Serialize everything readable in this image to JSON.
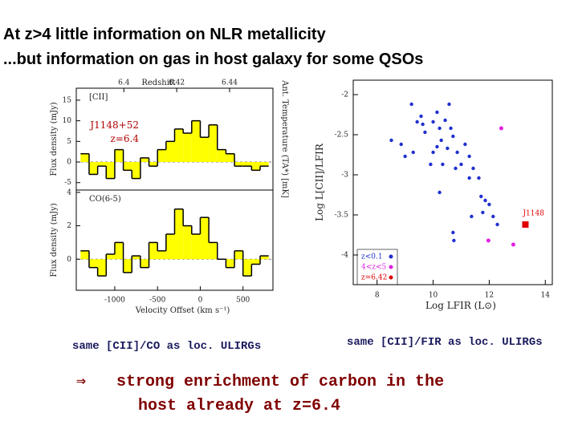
{
  "header": {
    "title": "At z>4 little information on NLR metallicity",
    "subtitle": "...but information on gas in host galaxy for some QSOs"
  },
  "captions": [
    "same [CII]/CO as loc. ULIRGs",
    "same [CII]/FIR as loc. ULIRGs"
  ],
  "conclusion": {
    "arrow": "⇒",
    "lines": [
      "strong enrichment of carbon in the",
      "host already at z=6.4"
    ]
  },
  "chart_data": [
    {
      "type": "step",
      "label": "[CII]",
      "annotations": [
        "J1148+52",
        "z=6.4"
      ],
      "ylabel": "Flux density (mJy)",
      "y2label": "Ant. Temperature (TA*) [mK]",
      "x2label": "Redshift",
      "x": [
        -1350,
        -1250,
        -1150,
        -1050,
        -950,
        -850,
        -750,
        -650,
        -550,
        -450,
        -350,
        -250,
        -150,
        -50,
        50,
        150,
        250,
        350,
        450,
        550,
        650,
        750
      ],
      "values": [
        2,
        -3,
        -1,
        -4,
        3,
        -2,
        -4,
        1,
        -1,
        3,
        5,
        8,
        7,
        10,
        6,
        9,
        3,
        2,
        -1,
        -1,
        -2,
        -1
      ],
      "color": "#ffff00",
      "xlim": [
        -1450,
        850
      ],
      "ylim": [
        -6.8,
        17.9
      ],
      "yticks": [
        15,
        10,
        5,
        0,
        -5
      ],
      "x2lim": [
        6.382,
        6.4564
      ],
      "x2ticks": [
        6.4,
        6.42,
        6.44
      ]
    },
    {
      "type": "step",
      "label": "CO(6-5)",
      "ylabel": "Flux density (mJy)",
      "xlabel": "Velocity Offset (km s⁻¹)",
      "x": [
        -1350,
        -1250,
        -1150,
        -1050,
        -950,
        -850,
        -750,
        -650,
        -550,
        -450,
        -350,
        -250,
        -150,
        -50,
        50,
        150,
        250,
        350,
        450,
        550,
        650,
        750
      ],
      "values": [
        0.5,
        -0.5,
        -1,
        0.3,
        1,
        -0.8,
        0.2,
        -0.5,
        1,
        0.5,
        1.5,
        3,
        2,
        1.5,
        2.5,
        1,
        0,
        -0.5,
        0.5,
        -1,
        -0.3,
        0.2
      ],
      "color": "#ffff00",
      "xlim": [
        -1450,
        850
      ],
      "ylim": [
        -1.86,
        4.14
      ],
      "yticks": [
        4,
        2,
        0
      ],
      "xticks": [
        -1000,
        -500,
        0,
        500
      ]
    },
    {
      "type": "scatter",
      "xlabel": "Log LFIR (L⊙)",
      "ylabel": "Log L[CII]/LFIR",
      "xlim": [
        7.15,
        14.25
      ],
      "ylim": [
        -4.37,
        -1.82
      ],
      "xticks": [
        8,
        10,
        12,
        14
      ],
      "yticks": [
        -2,
        -2.5,
        -3,
        -3.5,
        -4
      ],
      "annotations": [
        "J1148"
      ],
      "series": [
        {
          "name": "z<0.1",
          "color": "#1f2fd0",
          "x": [
            9.23,
            9.57,
            9.43,
            9.63,
            10.0,
            10.14,
            10.23,
            9.71,
            10.43,
            10.57,
            10.63,
            10.71,
            10.29,
            10.14,
            10.0,
            10.51,
            10.86,
            11.0,
            10.8,
            10.34,
            8.86,
            8.51,
            9.0,
            9.29,
            9.91,
            11.14,
            11.29,
            11.43,
            11.29,
            11.63,
            10.23,
            11.71,
            11.86,
            12.0,
            11.77,
            12.14,
            12.29,
            11.37,
            10.71,
            10.74
          ],
          "values": [
            -2.12,
            -2.27,
            -2.34,
            -2.37,
            -2.34,
            -2.22,
            -2.42,
            -2.47,
            -2.32,
            -2.12,
            -2.42,
            -2.52,
            -2.57,
            -2.65,
            -2.72,
            -2.67,
            -2.72,
            -2.87,
            -2.92,
            -2.87,
            -2.62,
            -2.57,
            -2.77,
            -2.72,
            -2.87,
            -2.62,
            -2.77,
            -2.92,
            -3.04,
            -3.04,
            -3.22,
            -3.27,
            -3.32,
            -3.37,
            -3.47,
            -3.52,
            -3.62,
            -3.52,
            -3.72,
            -3.82
          ]
        },
        {
          "name": "4<z<5",
          "color": "#e020e0",
          "x": [
            12.43,
            11.97,
            12.86
          ],
          "values": [
            -2.42,
            -3.82,
            -3.87
          ]
        },
        {
          "name": "z=6.42",
          "color": "#e00000",
          "x": [
            13.29
          ],
          "values": [
            -3.62
          ]
        }
      ]
    }
  ]
}
